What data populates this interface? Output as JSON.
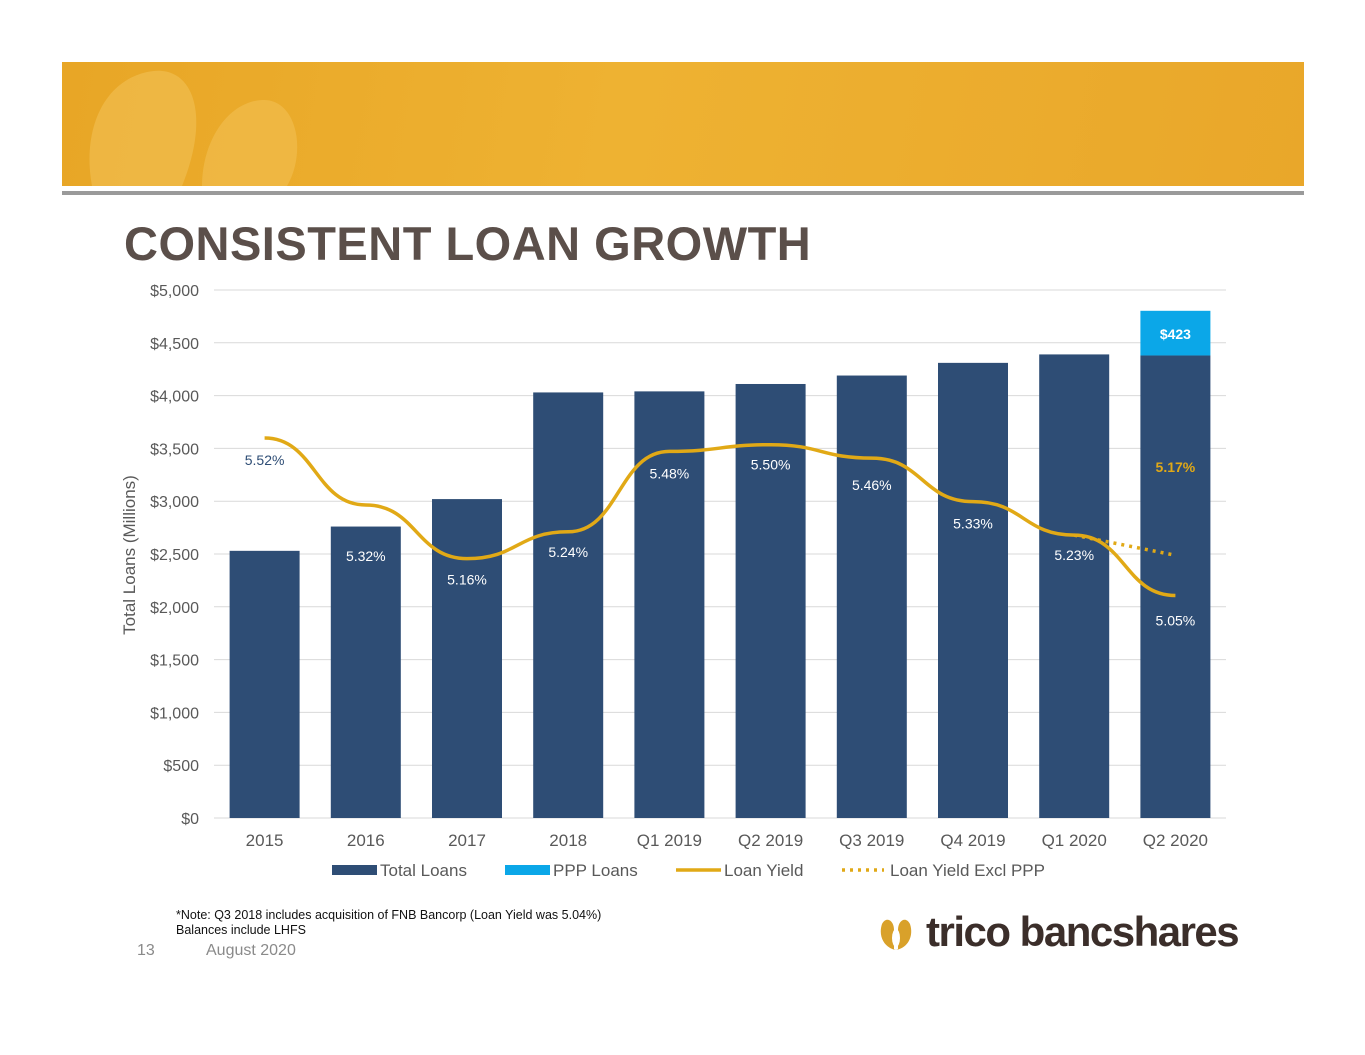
{
  "slide": {
    "title": "CONSISTENT LOAN GROWTH",
    "note_line1": "*Note: Q3 2018 includes acquisition of FNB Bancorp (Loan Yield was 5.04%)",
    "note_line2": "Balances include LHFS",
    "page_number": "13",
    "date": "August 2020",
    "logo_text": "trico bancshares"
  },
  "colors": {
    "banner": "#eeb232",
    "total_loans": "#2e4d75",
    "ppp_loans": "#0ba7e8",
    "loan_yield": "#e1a916",
    "yield_label": "#2e4d75",
    "ppp_yield_label": "#e1a916"
  },
  "chart_data": {
    "type": "bar",
    "ylabel": "Total Loans (Millions)",
    "ylim": [
      0,
      5000
    ],
    "yticks": [
      "$0",
      "$500",
      "$1,000",
      "$1,500",
      "$2,000",
      "$2,500",
      "$3,000",
      "$3,500",
      "$4,000",
      "$4,500",
      "$5,000"
    ],
    "ytick_values": [
      0,
      500,
      1000,
      1500,
      2000,
      2500,
      3000,
      3500,
      4000,
      4500,
      5000
    ],
    "categories": [
      "2015",
      "2016",
      "2017",
      "2018",
      "Q1 2019",
      "Q2 2019",
      "Q3 2019",
      "Q4 2019",
      "Q1 2020",
      "Q2 2020"
    ],
    "series": [
      {
        "name": "Total Loans",
        "type": "bar",
        "values": [
          2530,
          2760,
          3020,
          4030,
          4040,
          4110,
          4190,
          4310,
          4390,
          4380
        ]
      },
      {
        "name": "PPP Loans",
        "type": "bar-stacked",
        "values": [
          null,
          null,
          null,
          null,
          null,
          null,
          null,
          null,
          null,
          423
        ],
        "labels": [
          "",
          "",
          "",
          "",
          "",
          "",
          "",
          "",
          "",
          "$423"
        ]
      },
      {
        "name": "Loan Yield",
        "type": "line",
        "axis": "secondary",
        "values": [
          5.52,
          5.32,
          5.16,
          5.24,
          5.48,
          5.5,
          5.46,
          5.33,
          5.23,
          5.05
        ],
        "labels": [
          "5.52%",
          "5.32%",
          "5.16%",
          "5.24%",
          "5.48%",
          "5.50%",
          "5.46%",
          "5.33%",
          "5.23%",
          "5.05%"
        ]
      },
      {
        "name": "Loan Yield Excl PPP",
        "type": "line-dotted",
        "axis": "secondary",
        "values": [
          null,
          null,
          null,
          null,
          null,
          null,
          null,
          null,
          5.23,
          5.17
        ],
        "labels": [
          "",
          "",
          "",
          "",
          "",
          "",
          "",
          "",
          "",
          "5.17%"
        ]
      }
    ],
    "legend": [
      "Total Loans",
      "PPP Loans",
      "Loan Yield",
      "Loan Yield Excl PPP"
    ],
    "legend_position": "bottom",
    "grid": true
  }
}
